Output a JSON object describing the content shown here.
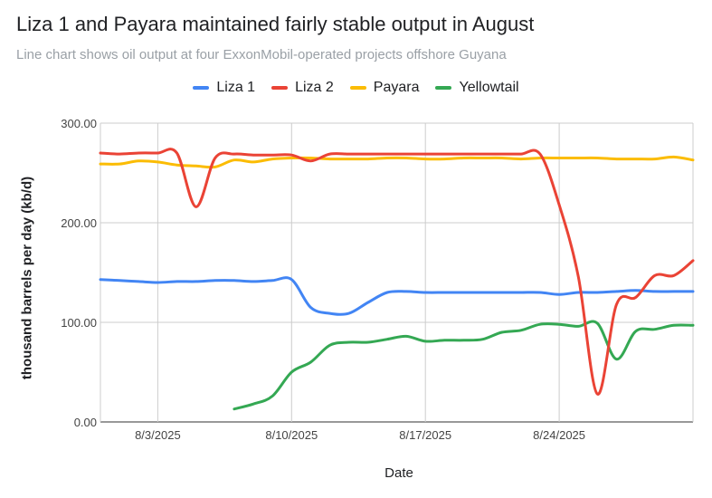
{
  "title": "Liza 1 and Payara maintained fairly stable output in August",
  "subtitle": "Line chart shows oil output at four ExxonMobil-operated projects offshore Guyana",
  "chart_data": {
    "type": "line",
    "xlabel": "Date",
    "ylabel": "thousand barrels per day (kb/d)",
    "ylim": [
      0,
      300
    ],
    "xlim": [
      "2025-07-31",
      "2025-08-31"
    ],
    "yticks": [
      "0.00",
      "100.00",
      "200.00",
      "300.00"
    ],
    "xticks": [
      {
        "date": "2025-08-03",
        "label": "8/3/2025"
      },
      {
        "date": "2025-08-10",
        "label": "8/10/2025"
      },
      {
        "date": "2025-08-17",
        "label": "8/17/2025"
      },
      {
        "date": "2025-08-24",
        "label": "8/24/2025"
      }
    ],
    "grid": true,
    "legend_position": "top",
    "x": [
      "2025-07-31",
      "2025-08-01",
      "2025-08-02",
      "2025-08-03",
      "2025-08-04",
      "2025-08-05",
      "2025-08-06",
      "2025-08-07",
      "2025-08-08",
      "2025-08-09",
      "2025-08-10",
      "2025-08-11",
      "2025-08-12",
      "2025-08-13",
      "2025-08-14",
      "2025-08-15",
      "2025-08-16",
      "2025-08-17",
      "2025-08-18",
      "2025-08-19",
      "2025-08-20",
      "2025-08-21",
      "2025-08-22",
      "2025-08-23",
      "2025-08-24",
      "2025-08-25",
      "2025-08-26",
      "2025-08-27",
      "2025-08-28",
      "2025-08-29",
      "2025-08-30",
      "2025-08-31"
    ],
    "series": [
      {
        "name": "Liza 1",
        "color": "#4285f4",
        "values": [
          143,
          142,
          141,
          140,
          141,
          141,
          142,
          142,
          141,
          142,
          143,
          115,
          109,
          109,
          120,
          130,
          131,
          130,
          130,
          130,
          130,
          130,
          130,
          130,
          128,
          130,
          130,
          131,
          132,
          131,
          131,
          131
        ]
      },
      {
        "name": "Liza 2",
        "color": "#ea4335",
        "values": [
          270,
          269,
          270,
          270,
          270,
          216,
          265,
          269,
          268,
          268,
          268,
          262,
          269,
          269,
          269,
          269,
          269,
          269,
          269,
          269,
          269,
          269,
          269,
          269,
          218,
          146,
          28,
          118,
          125,
          147,
          147,
          162
        ]
      },
      {
        "name": "Payara",
        "color": "#fbbc04",
        "values": [
          259,
          259,
          262,
          261,
          258,
          257,
          256,
          263,
          261,
          264,
          265,
          265,
          264,
          264,
          264,
          265,
          265,
          264,
          264,
          265,
          265,
          265,
          264,
          265,
          265,
          265,
          265,
          264,
          264,
          264,
          266,
          263
        ]
      },
      {
        "name": "Yellowtail",
        "color": "#34a853",
        "values": [
          null,
          null,
          null,
          null,
          null,
          null,
          null,
          13,
          18,
          26,
          50,
          60,
          77,
          80,
          80,
          83,
          86,
          81,
          82,
          82,
          83,
          90,
          92,
          98,
          98,
          96,
          99,
          63,
          91,
          93,
          97,
          97
        ]
      }
    ]
  }
}
